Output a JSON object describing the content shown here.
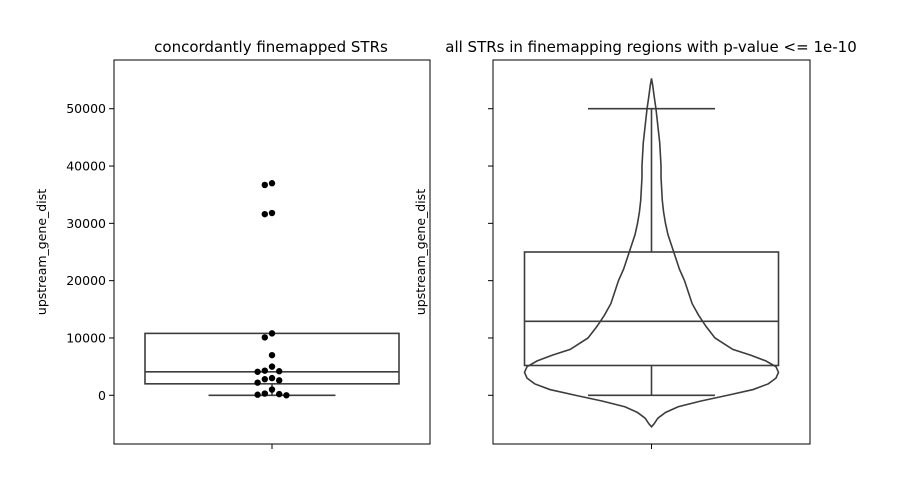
{
  "chart_data": [
    {
      "type": "box+swarm",
      "title": "concordantly finemapped STRs",
      "xlabel": "",
      "ylabel": "upstream_gene_dist",
      "ylim": [
        -8500,
        58500
      ],
      "yticks": [
        0,
        10000,
        20000,
        30000,
        40000,
        50000
      ],
      "grid": false,
      "box": {
        "whisker_low": 0,
        "q1": 2000,
        "median": 4100,
        "q3": 10800,
        "whisker_high": 10800
      },
      "points": [
        37000,
        36700,
        31800,
        31600,
        10800,
        10100,
        7000,
        5000,
        4300,
        4200,
        4100,
        3000,
        2800,
        2600,
        2200,
        1000,
        300,
        200,
        100,
        0
      ]
    },
    {
      "type": "box+violin",
      "title": "all STRs in finemapping regions with p-value <= 1e-10",
      "xlabel": "",
      "ylabel": "upstream_gene_dist",
      "ylim": [
        -8500,
        58500
      ],
      "yticks": [
        0,
        10000,
        20000,
        30000,
        40000,
        50000
      ],
      "grid": false,
      "box": {
        "whisker_low": 0,
        "q1": 5200,
        "median": 12900,
        "q3": 25000,
        "whisker_high": 50000
      },
      "density_profile": [
        [
          -5500,
          0.0
        ],
        [
          -5000,
          0.02
        ],
        [
          -4000,
          0.05
        ],
        [
          -3000,
          0.11
        ],
        [
          -2000,
          0.21
        ],
        [
          -1000,
          0.39
        ],
        [
          0,
          0.6
        ],
        [
          1000,
          0.8
        ],
        [
          2000,
          0.92
        ],
        [
          3000,
          0.98
        ],
        [
          4000,
          1.0
        ],
        [
          5000,
          0.98
        ],
        [
          6000,
          0.9
        ],
        [
          7000,
          0.78
        ],
        [
          8000,
          0.64
        ],
        [
          10000,
          0.5
        ],
        [
          12000,
          0.43
        ],
        [
          14000,
          0.37
        ],
        [
          16000,
          0.32
        ],
        [
          18000,
          0.29
        ],
        [
          20000,
          0.26
        ],
        [
          22000,
          0.22
        ],
        [
          24000,
          0.19
        ],
        [
          26000,
          0.16
        ],
        [
          28000,
          0.13
        ],
        [
          30000,
          0.11
        ],
        [
          32000,
          0.095
        ],
        [
          34000,
          0.085
        ],
        [
          36000,
          0.08
        ],
        [
          38000,
          0.075
        ],
        [
          40000,
          0.075
        ],
        [
          42000,
          0.07
        ],
        [
          44000,
          0.065
        ],
        [
          46000,
          0.055
        ],
        [
          48000,
          0.045
        ],
        [
          50000,
          0.035
        ],
        [
          52000,
          0.022
        ],
        [
          54000,
          0.01
        ],
        [
          55300,
          0.0
        ]
      ]
    }
  ]
}
